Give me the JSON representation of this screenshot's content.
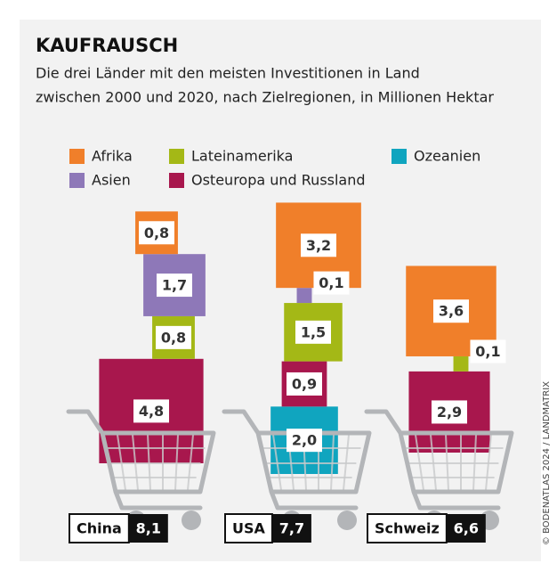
{
  "chart_data": {
    "type": "square-stack",
    "title": "KAUFRAUSCH",
    "subtitle": [
      "Die drei Länder mit den meisten Investitionen in Land",
      "zwischen 2000 und 2020, nach Zielregionen, in Millionen Hektar"
    ],
    "categories": [
      "China",
      "USA",
      "Schweiz"
    ],
    "totals": [
      8.1,
      7.7,
      6.6
    ],
    "total_labels": [
      "8,1",
      "7,7",
      "6,6"
    ],
    "series": [
      {
        "name": "Afrika",
        "color": "#f07f2a",
        "values": [
          0.8,
          3.2,
          3.6
        ],
        "value_labels": [
          "0,8",
          "3,2",
          "3,6"
        ]
      },
      {
        "name": "Asien",
        "color": "#8e78b8",
        "values": [
          1.7,
          0.1,
          null
        ],
        "value_labels": [
          "1,7",
          "0,1",
          null
        ]
      },
      {
        "name": "Lateinamerika",
        "color": "#a4b816",
        "values": [
          0.8,
          1.5,
          0.1
        ],
        "value_labels": [
          "0,8",
          "1,5",
          "0,1"
        ]
      },
      {
        "name": "Osteuropa und Russland",
        "color": "#a8174d",
        "values": [
          4.8,
          0.9,
          2.9
        ],
        "value_labels": [
          "4,8",
          "0,9",
          "2,9"
        ]
      },
      {
        "name": "Ozeanien",
        "color": "#10a5bf",
        "values": [
          null,
          2.0,
          null
        ],
        "value_labels": [
          null,
          "2,0",
          null
        ]
      }
    ],
    "credit": "© BODENATLAS 2024 / LANDMATRIX"
  }
}
